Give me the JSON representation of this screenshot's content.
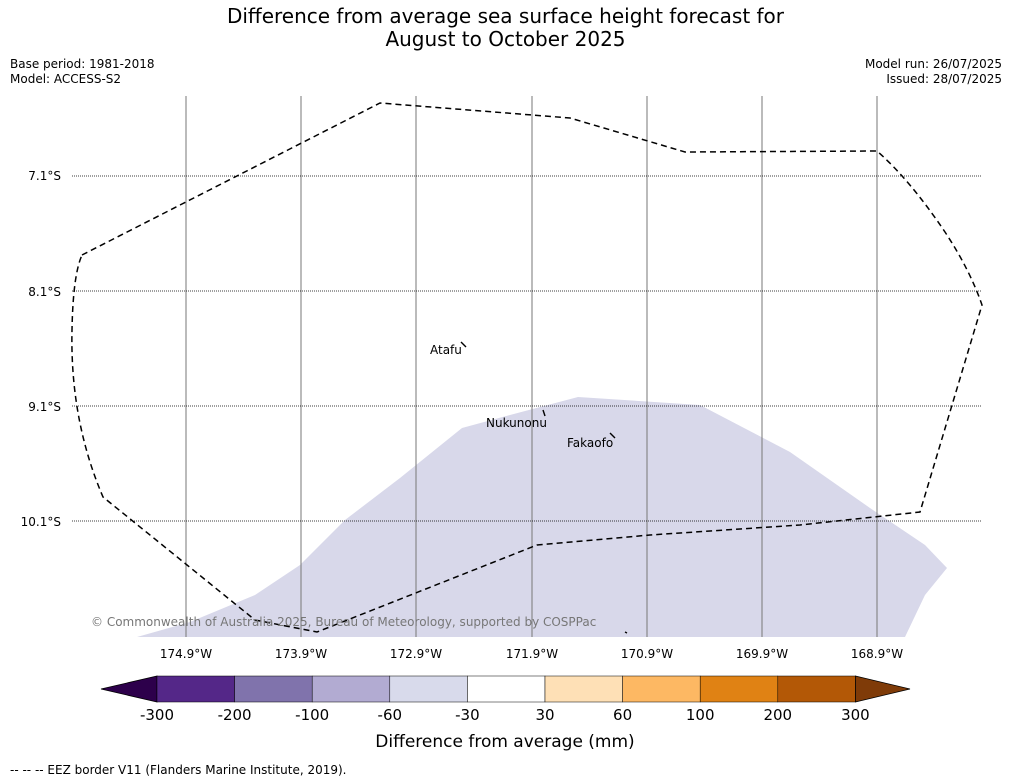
{
  "header": {
    "title_line1": "Difference from average sea surface height forecast for",
    "title_line2": "August to October 2025",
    "base_period": "Base period: 1981-2018",
    "model": "Model: ACCESS-S2",
    "model_run": "Model run: 26/07/2025",
    "issued": "Issued: 28/07/2025"
  },
  "map": {
    "lat_labels": [
      "7.1°S",
      "8.1°S",
      "9.1°S",
      "10.1°S"
    ],
    "lon_labels": [
      "174.9°W",
      "173.9°W",
      "172.9°W",
      "171.9°W",
      "170.9°W",
      "169.9°W",
      "168.9°W"
    ],
    "places": [
      "Atafu",
      "Nukunonu",
      "Fakaofo"
    ],
    "copyright": "© Commonwealth of Australia 2025, Bureau of Meteorology, supported by COSPPac",
    "anomaly_fill_color": "#d8d8ea",
    "anomaly_category": "-60 to -30"
  },
  "colorbar": {
    "tick_labels": [
      "-300",
      "-200",
      "-100",
      "-60",
      "-30",
      "30",
      "60",
      "100",
      "200",
      "300"
    ],
    "colors": [
      "#2d004b",
      "#542788",
      "#8073ac",
      "#b2abd2",
      "#d8daeb",
      "#ffffff",
      "#fee0b6",
      "#fdb863",
      "#e08214",
      "#b35806",
      "#7f3b08"
    ],
    "label": "Difference from average (mm)"
  },
  "footer": {
    "legend": "--  --  -- EEZ border V11 (Flanders Marine Institute, 2019)."
  }
}
